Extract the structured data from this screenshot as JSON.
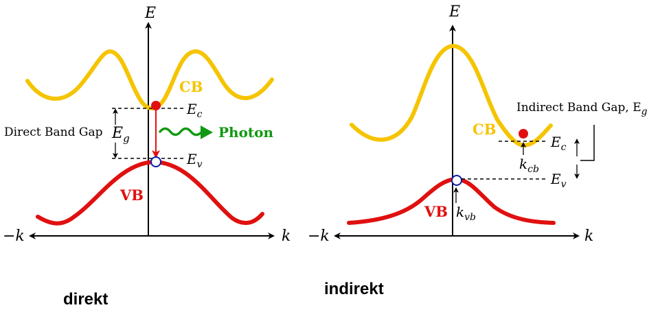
{
  "colors": {
    "conduction_band": "#F5C400",
    "valence_band": "#E01010",
    "photon": "#119911",
    "electron": "#E01010",
    "hole": "#0A1AA8",
    "axis": "#000000"
  },
  "direct": {
    "axis_e": "E",
    "axis_k": "k",
    "axis_minus_k": "−k",
    "cb_label": "CB",
    "vb_label": "VB",
    "gap_label": "Direct Band Gap",
    "eg_label": "E",
    "eg_sub": "g",
    "ec_label": "E",
    "ec_sub": "c",
    "ev_label": "E",
    "ev_sub": "v",
    "photon_label": "Photon",
    "caption": "direkt"
  },
  "indirect": {
    "axis_e": "E",
    "axis_k": "k",
    "axis_minus_k": "−k",
    "cb_label": "CB",
    "vb_label": "VB",
    "gap_label": "Indirect Band Gap, E",
    "gap_sub": "g",
    "ec_label": "E",
    "ec_sub": "c",
    "ev_label": "E",
    "ev_sub": "v",
    "kcb_label": "k",
    "kcb_sub": "cb",
    "kvb_label": "k",
    "kvb_sub": "vb",
    "caption": "indirekt"
  }
}
